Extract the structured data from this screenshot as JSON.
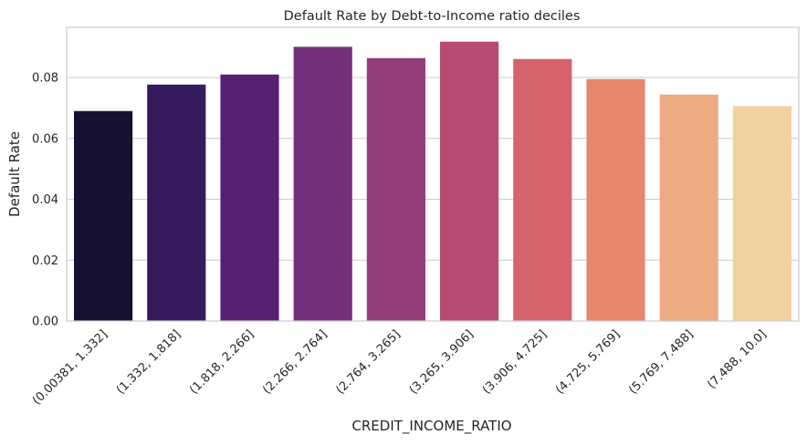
{
  "chart_data": {
    "type": "bar",
    "title": "Default Rate by Debt-to-Income ratio deciles",
    "xlabel": "CREDIT_INCOME_RATIO",
    "ylabel": "Default Rate",
    "categories": [
      "(0.00381, 1.332]",
      "(1.332, 1.818]",
      "(1.818, 2.266]",
      "(2.266, 2.764]",
      "(2.764, 3.265]",
      "(3.265, 3.906]",
      "(3.906, 4.725]",
      "(4.725, 5.769]",
      "(5.769, 7.488]",
      "(7.488, 10.0]"
    ],
    "values": [
      0.069,
      0.0777,
      0.081,
      0.0901,
      0.0864,
      0.0918,
      0.0861,
      0.0795,
      0.0744,
      0.0706
    ],
    "colors": [
      "#151130",
      "#351b5e",
      "#572071",
      "#74307a",
      "#943d77",
      "#b94a73",
      "#d6626e",
      "#e6876c",
      "#edab82",
      "#f2d1a1"
    ],
    "ylim": [
      0,
      0.0965
    ],
    "yticks": [
      "0.00",
      "0.02",
      "0.04",
      "0.06",
      "0.08"
    ],
    "ytick_values": [
      0,
      0.02,
      0.04,
      0.06,
      0.08
    ],
    "grid": "horizontal",
    "legend": "none"
  }
}
